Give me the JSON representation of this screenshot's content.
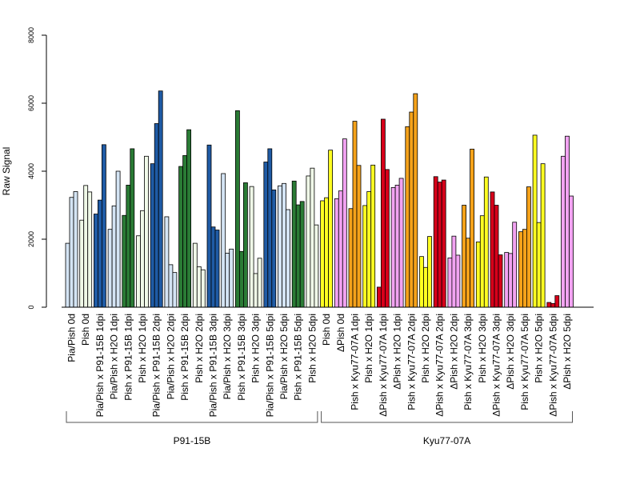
{
  "chart_data": {
    "type": "bar",
    "ylabel": "Raw Signal",
    "ylim": [
      0,
      8000
    ],
    "yticks": [
      0,
      2000,
      4000,
      6000,
      8000
    ],
    "grid": false,
    "legend": "none",
    "categories": [
      "Pia/Pish 0d",
      "Pish 0d",
      "Pia/Pish x P91-15B 1dpi",
      "Pia/Pish x H2O 1dpi",
      "Pish x P91-15B 1dpi",
      "Pish x H2O 1dpi",
      "Pia/Pish x P91-15B 2dpi",
      "Pia/Pish x H2O 2dpi",
      "Pish x P91-15B 2dpi",
      "Pish x H2O 2dpi",
      "Pia/Pish x P91-15B 3dpi",
      "Pia/Pish x H2O 3dpi",
      "Pish x P91-15B 3dpi",
      "Pish x H2O 3dpi",
      "Pia/Pish x P91-15B 5dpi",
      "Pia/Pish x H2O 5dpi",
      "Pish x P91-15B 5dpi",
      "Pish x H2O 5dpi",
      "Pish 0d",
      "ΔPish 0d",
      "Pish x Kyu77-07A 1dpi",
      "Pish x H2O 1dpi",
      "ΔPish x Kyu77-07A 1dpi",
      "ΔPish x H2O 1dpi",
      "Pish x Kyu77-07A 2dpi",
      "Pish x H2O 2dpi",
      "ΔPish x Kyu77-07A 2dpi",
      "ΔPish x H2O 2dpi",
      "Pish x Kyu77-07A 3dpi",
      "Pish x H2O 3dpi",
      "ΔPish x Kyu77-07A 3dpi",
      "ΔPish x H2O 3dpi",
      "Pish x Kyu77-07A 5dpi",
      "Pish x H2O 5dpi",
      "ΔPish x Kyu77-07A 5dpi",
      "ΔPish x H2O 5dpi"
    ],
    "colors": [
      "#d4e4f4",
      "#f0f9e8",
      "#1f5ba5",
      "#d4e4f4",
      "#2a7b35",
      "#f0f9e8",
      "#1f5ba5",
      "#d4e4f4",
      "#2a7b35",
      "#f0f9e8",
      "#1f5ba5",
      "#d4e4f4",
      "#2a7b35",
      "#f0f9e8",
      "#1f5ba5",
      "#d4e4f4",
      "#2a7b35",
      "#f0f9e8",
      "#ffff22",
      "#f2a3f2",
      "#f5a21a",
      "#ffff22",
      "#d7001a",
      "#f2a3f2",
      "#f5a21a",
      "#ffff22",
      "#d7001a",
      "#f2a3f2",
      "#f5a21a",
      "#ffff22",
      "#d7001a",
      "#f2a3f2",
      "#f5a21a",
      "#ffff22",
      "#d7001a",
      "#f2a3f2"
    ],
    "values": [
      [
        1880,
        3230,
        3400
      ],
      [
        2560,
        3580,
        3390
      ],
      [
        2740,
        3150,
        4780
      ],
      [
        2290,
        2980,
        4000
      ],
      [
        2700,
        3590,
        4660
      ],
      [
        2100,
        2840,
        4440
      ],
      [
        4220,
        5400,
        6360
      ],
      [
        2660,
        1250,
        1020
      ],
      [
        4140,
        4460,
        5220
      ],
      [
        1880,
        1190,
        1100
      ],
      [
        4770,
        2360,
        2270
      ],
      [
        3930,
        1590,
        1710
      ],
      [
        5780,
        1640,
        3660
      ],
      [
        3550,
        990,
        1440
      ],
      [
        4270,
        4660,
        3450
      ],
      [
        3570,
        3640,
        2870
      ],
      [
        3710,
        3010,
        3110
      ],
      [
        3860,
        4090,
        2420
      ],
      [
        3130,
        3220,
        4620
      ],
      [
        3190,
        3420,
        4950
      ],
      [
        2900,
        5470,
        4170
      ],
      [
        2990,
        3400,
        4180
      ],
      [
        590,
        5530,
        4050
      ],
      [
        3520,
        3590,
        3790
      ],
      [
        5310,
        5740,
        6280
      ],
      [
        1490,
        1170,
        2080
      ],
      [
        3840,
        3680,
        3740
      ],
      [
        1450,
        2090,
        1530
      ],
      [
        3000,
        2030,
        4650
      ],
      [
        1920,
        2690,
        3830
      ],
      [
        3390,
        3000,
        1540
      ],
      [
        1610,
        1580,
        2500
      ],
      [
        2220,
        2290,
        3540
      ],
      [
        5060,
        2490,
        4220
      ],
      [
        140,
        110,
        340
      ],
      [
        4440,
        5030,
        3270
      ]
    ],
    "groups": [
      {
        "label": "P91-15B",
        "from": 0,
        "to": 17
      },
      {
        "label": "Kyu77-07A",
        "from": 18,
        "to": 35
      }
    ]
  }
}
